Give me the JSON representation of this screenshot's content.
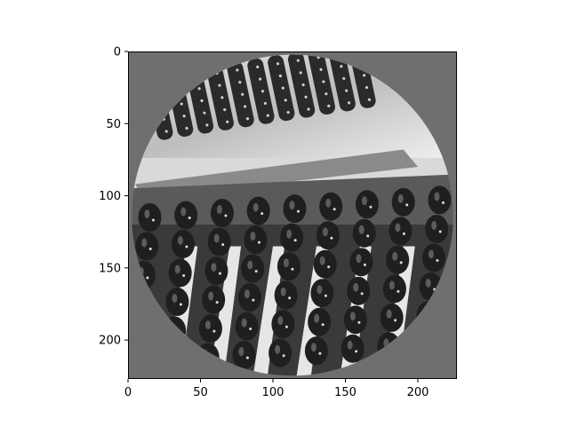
{
  "chart_data": {
    "type": "image",
    "title": "",
    "xlabel": "",
    "ylabel": "",
    "xlim": [
      0,
      227
    ],
    "ylim": [
      227,
      0
    ],
    "x_ticks": [
      0,
      50,
      100,
      150,
      200
    ],
    "y_ticks": [
      0,
      50,
      100,
      150,
      200
    ],
    "image": {
      "description_semantic": "grayscale circular-masked photo of dark wine bottles resting neck-down in riddling racks",
      "background_fill": "#6f6f6f",
      "circle_center": [
        113.5,
        113.5
      ],
      "circle_radius": 111
    }
  },
  "colors": {
    "axes_frame": "#000000",
    "background_gray": "#6f6f6f",
    "bottle_dark": "#2a2a2a",
    "rack_light": "#d9d9d9"
  }
}
